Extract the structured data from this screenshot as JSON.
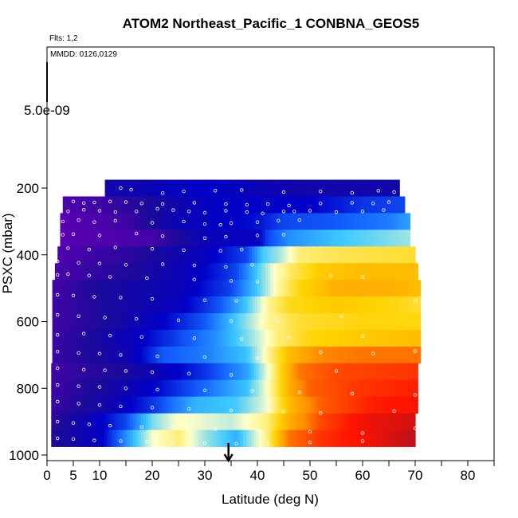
{
  "chart_data": {
    "type": "heatmap",
    "title": "ATOM2 Northeast_Pacific_1 CONBNA_GEOS5",
    "flights_note": "Flts: 1,2",
    "date_note": "MMDD: 0126,0129",
    "xlabel": "Latitude (deg N)",
    "ylabel": "PSXC (mbar)",
    "xlim": [
      0,
      85
    ],
    "ylim": [
      1000,
      0
    ],
    "x_ticks": [
      0,
      5,
      10,
      20,
      30,
      40,
      50,
      60,
      70,
      80
    ],
    "y_ticks": [
      200,
      400,
      600,
      800,
      1000
    ],
    "colorbar_label": "5.0e-09",
    "arrow_latitude": 34.5,
    "colormap": [
      "#5a00b0",
      "#1c0a9a",
      "#0000c8",
      "#1464ff",
      "#3cc8ff",
      "#ffffc8",
      "#ffd200",
      "#ff8c00",
      "#ff1400",
      "#b01020"
    ],
    "rows": [
      {
        "p": 200,
        "x_start": 11.0,
        "x_end": 67.0,
        "values": [
          [
            11,
            0.15
          ],
          [
            20,
            0.18
          ],
          [
            30,
            0.22
          ],
          [
            40,
            0.18
          ],
          [
            50,
            0.15
          ],
          [
            67,
            0.15
          ]
        ]
      },
      {
        "p": 250,
        "x_start": 3.0,
        "x_end": 68.0,
        "values": [
          [
            3,
            0.02
          ],
          [
            10,
            0.05
          ],
          [
            20,
            0.12
          ],
          [
            30,
            0.2
          ],
          [
            40,
            0.22
          ],
          [
            50,
            0.22
          ],
          [
            60,
            0.28
          ],
          [
            68,
            0.3
          ]
        ]
      },
      {
        "p": 300,
        "x_start": 2.5,
        "x_end": 69.0,
        "values": [
          [
            2.5,
            0.0
          ],
          [
            15,
            0.05
          ],
          [
            25,
            0.18
          ],
          [
            35,
            0.22
          ],
          [
            40,
            0.24
          ],
          [
            45,
            0.3
          ],
          [
            55,
            0.32
          ],
          [
            65,
            0.36
          ],
          [
            69,
            0.4
          ]
        ]
      },
      {
        "p": 350,
        "x_start": 2.5,
        "x_end": 69.0,
        "values": [
          [
            2.5,
            0.0
          ],
          [
            20,
            0.04
          ],
          [
            30,
            0.18
          ],
          [
            40,
            0.2
          ],
          [
            42,
            0.3
          ],
          [
            46,
            0.38
          ],
          [
            55,
            0.44
          ],
          [
            69,
            0.5
          ]
        ]
      },
      {
        "p": 400,
        "x_start": 2.0,
        "x_end": 70.0,
        "values": [
          [
            2,
            0.02
          ],
          [
            15,
            0.08
          ],
          [
            30,
            0.2
          ],
          [
            38,
            0.3
          ],
          [
            41,
            0.45
          ],
          [
            44,
            0.5
          ],
          [
            48,
            0.6
          ],
          [
            55,
            0.62
          ],
          [
            70,
            0.64
          ]
        ]
      },
      {
        "p": 450,
        "x_start": 1.5,
        "x_end": 70.5,
        "values": [
          [
            1.5,
            0.03
          ],
          [
            15,
            0.1
          ],
          [
            28,
            0.2
          ],
          [
            36,
            0.3
          ],
          [
            40,
            0.45
          ],
          [
            43,
            0.55
          ],
          [
            47,
            0.62
          ],
          [
            52,
            0.68
          ],
          [
            60,
            0.7
          ],
          [
            70.5,
            0.7
          ]
        ]
      },
      {
        "p": 500,
        "x_start": 1.0,
        "x_end": 71.0,
        "values": [
          [
            1,
            0.04
          ],
          [
            10,
            0.12
          ],
          [
            25,
            0.18
          ],
          [
            35,
            0.3
          ],
          [
            40,
            0.45
          ],
          [
            44,
            0.58
          ],
          [
            48,
            0.66
          ],
          [
            55,
            0.72
          ],
          [
            65,
            0.72
          ],
          [
            71,
            0.7
          ]
        ]
      },
      {
        "p": 550,
        "x_start": 1.0,
        "x_end": 71.0,
        "values": [
          [
            1,
            0.05
          ],
          [
            12,
            0.12
          ],
          [
            25,
            0.2
          ],
          [
            33,
            0.32
          ],
          [
            38,
            0.45
          ],
          [
            42,
            0.58
          ],
          [
            46,
            0.65
          ],
          [
            55,
            0.68
          ],
          [
            65,
            0.66
          ],
          [
            71,
            0.64
          ]
        ]
      },
      {
        "p": 600,
        "x_start": 1.0,
        "x_end": 71.0,
        "values": [
          [
            1,
            0.05
          ],
          [
            12,
            0.12
          ],
          [
            22,
            0.22
          ],
          [
            30,
            0.32
          ],
          [
            36,
            0.45
          ],
          [
            42,
            0.58
          ],
          [
            48,
            0.64
          ],
          [
            60,
            0.66
          ],
          [
            71,
            0.66
          ]
        ]
      },
      {
        "p": 650,
        "x_start": 1.0,
        "x_end": 71.0,
        "values": [
          [
            1,
            0.05
          ],
          [
            15,
            0.18
          ],
          [
            25,
            0.3
          ],
          [
            32,
            0.38
          ],
          [
            38,
            0.48
          ],
          [
            44,
            0.6
          ],
          [
            50,
            0.66
          ],
          [
            60,
            0.68
          ],
          [
            71,
            0.7
          ]
        ]
      },
      {
        "p": 700,
        "x_start": 1.0,
        "x_end": 71.0,
        "values": [
          [
            1,
            0.06
          ],
          [
            15,
            0.16
          ],
          [
            22,
            0.32
          ],
          [
            30,
            0.36
          ],
          [
            38,
            0.44
          ],
          [
            42,
            0.58
          ],
          [
            46,
            0.7
          ],
          [
            52,
            0.78
          ],
          [
            60,
            0.8
          ],
          [
            71,
            0.8
          ]
        ]
      },
      {
        "p": 750,
        "x_start": 0.8,
        "x_end": 70.5,
        "values": [
          [
            0.8,
            0.05
          ],
          [
            15,
            0.12
          ],
          [
            30,
            0.28
          ],
          [
            38,
            0.4
          ],
          [
            42,
            0.55
          ],
          [
            45,
            0.68
          ],
          [
            48,
            0.8
          ],
          [
            55,
            0.84
          ],
          [
            70.5,
            0.86
          ]
        ]
      },
      {
        "p": 800,
        "x_start": 0.8,
        "x_end": 70.5,
        "values": [
          [
            0.8,
            0.05
          ],
          [
            10,
            0.12
          ],
          [
            20,
            0.22
          ],
          [
            30,
            0.34
          ],
          [
            38,
            0.44
          ],
          [
            42,
            0.56
          ],
          [
            46,
            0.72
          ],
          [
            50,
            0.82
          ],
          [
            60,
            0.86
          ],
          [
            70.5,
            0.88
          ]
        ]
      },
      {
        "p": 850,
        "x_start": 0.8,
        "x_end": 70.5,
        "values": [
          [
            0.8,
            0.06
          ],
          [
            10,
            0.14
          ],
          [
            20,
            0.28
          ],
          [
            28,
            0.42
          ],
          [
            36,
            0.45
          ],
          [
            42,
            0.55
          ],
          [
            46,
            0.7
          ],
          [
            52,
            0.82
          ],
          [
            62,
            0.88
          ],
          [
            70.5,
            0.9
          ]
        ]
      },
      {
        "p": 900,
        "x_start": 0.8,
        "x_end": 70.0,
        "values": [
          [
            0.8,
            0.08
          ],
          [
            8,
            0.18
          ],
          [
            15,
            0.3
          ],
          [
            20,
            0.48
          ],
          [
            25,
            0.56
          ],
          [
            35,
            0.52
          ],
          [
            42,
            0.6
          ],
          [
            46,
            0.72
          ],
          [
            52,
            0.84
          ],
          [
            62,
            0.92
          ],
          [
            70,
            0.95
          ]
        ]
      },
      {
        "p": 950,
        "x_start": 0.8,
        "x_end": 70.0,
        "values": [
          [
            0.8,
            0.1
          ],
          [
            10,
            0.2
          ],
          [
            15,
            0.38
          ],
          [
            20,
            0.55
          ],
          [
            25,
            0.6
          ],
          [
            30,
            0.5
          ],
          [
            36,
            0.42
          ],
          [
            42,
            0.6
          ],
          [
            46,
            0.8
          ],
          [
            52,
            0.86
          ],
          [
            60,
            0.9
          ],
          [
            70,
            0.98
          ]
        ]
      }
    ],
    "points": [
      [
        14,
        200
      ],
      [
        16,
        205
      ],
      [
        22,
        215
      ],
      [
        26,
        210
      ],
      [
        32,
        208
      ],
      [
        37,
        206
      ],
      [
        45,
        212
      ],
      [
        52,
        210
      ],
      [
        58,
        214
      ],
      [
        63,
        208
      ],
      [
        66,
        212
      ],
      [
        5,
        240
      ],
      [
        7,
        245
      ],
      [
        9,
        243
      ],
      [
        12,
        240
      ],
      [
        15,
        242
      ],
      [
        18,
        246
      ],
      [
        22,
        248
      ],
      [
        28,
        244
      ],
      [
        34,
        248
      ],
      [
        38,
        250
      ],
      [
        42,
        248
      ],
      [
        46,
        252
      ],
      [
        52,
        246
      ],
      [
        58,
        244
      ],
      [
        62,
        246
      ],
      [
        65,
        242
      ],
      [
        4,
        270
      ],
      [
        7,
        265
      ],
      [
        10,
        268
      ],
      [
        13,
        272
      ],
      [
        17,
        270
      ],
      [
        21,
        262
      ],
      [
        24,
        266
      ],
      [
        27,
        270
      ],
      [
        30,
        274
      ],
      [
        34,
        268
      ],
      [
        38,
        272
      ],
      [
        41,
        276
      ],
      [
        45,
        270
      ],
      [
        47,
        270
      ],
      [
        50,
        268
      ],
      [
        55,
        272
      ],
      [
        60,
        270
      ],
      [
        64,
        266
      ],
      [
        3,
        300
      ],
      [
        6,
        296
      ],
      [
        9,
        302
      ],
      [
        13,
        298
      ],
      [
        20,
        304
      ],
      [
        26,
        300
      ],
      [
        30,
        308
      ],
      [
        33,
        310
      ],
      [
        35,
        305
      ],
      [
        40,
        302
      ],
      [
        44,
        298
      ],
      [
        48,
        296
      ],
      [
        3,
        340
      ],
      [
        5,
        338
      ],
      [
        10,
        342
      ],
      [
        17,
        336
      ],
      [
        22,
        344
      ],
      [
        30,
        350
      ],
      [
        34,
        346
      ],
      [
        40,
        342
      ],
      [
        45,
        340
      ],
      [
        4,
        380
      ],
      [
        8,
        384
      ],
      [
        13,
        378
      ],
      [
        20,
        382
      ],
      [
        26,
        386
      ],
      [
        33,
        388
      ],
      [
        37,
        384
      ],
      [
        2,
        420
      ],
      [
        6,
        424
      ],
      [
        10,
        426
      ],
      [
        15,
        430
      ],
      [
        22,
        428
      ],
      [
        28,
        432
      ],
      [
        34,
        436
      ],
      [
        39,
        430
      ],
      [
        2,
        460
      ],
      [
        4,
        458
      ],
      [
        8,
        462
      ],
      [
        12,
        466
      ],
      [
        19,
        470
      ],
      [
        28,
        474
      ],
      [
        35,
        478
      ],
      [
        40,
        480
      ],
      [
        54,
        462
      ],
      [
        60,
        466
      ],
      [
        2,
        520
      ],
      [
        5,
        522
      ],
      [
        9,
        526
      ],
      [
        14,
        528
      ],
      [
        20,
        532
      ],
      [
        30,
        536
      ],
      [
        36,
        538
      ],
      [
        41,
        530
      ],
      [
        70,
        538
      ],
      [
        2,
        580
      ],
      [
        6,
        584
      ],
      [
        11,
        588
      ],
      [
        17,
        592
      ],
      [
        25,
        596
      ],
      [
        35,
        598
      ],
      [
        44,
        600
      ],
      [
        56,
        584
      ],
      [
        2,
        640
      ],
      [
        7,
        636
      ],
      [
        12,
        642
      ],
      [
        18,
        646
      ],
      [
        28,
        650
      ],
      [
        37,
        652
      ],
      [
        46,
        648
      ],
      [
        60,
        644
      ],
      [
        2,
        690
      ],
      [
        6,
        694
      ],
      [
        10,
        696
      ],
      [
        14,
        700
      ],
      [
        21,
        704
      ],
      [
        30,
        706
      ],
      [
        40,
        710
      ],
      [
        52,
        692
      ],
      [
        62,
        696
      ],
      [
        70,
        688
      ],
      [
        2,
        740
      ],
      [
        7,
        744
      ],
      [
        11,
        746
      ],
      [
        15,
        748
      ],
      [
        20,
        752
      ],
      [
        27,
        756
      ],
      [
        35,
        760
      ],
      [
        42,
        754
      ],
      [
        55,
        748
      ],
      [
        2,
        790
      ],
      [
        6,
        794
      ],
      [
        10,
        796
      ],
      [
        15,
        800
      ],
      [
        21,
        804
      ],
      [
        30,
        806
      ],
      [
        39,
        808
      ],
      [
        48,
        812
      ],
      [
        58,
        816
      ],
      [
        70,
        820
      ],
      [
        2,
        840
      ],
      [
        6,
        846
      ],
      [
        10,
        850
      ],
      [
        14,
        854
      ],
      [
        20,
        858
      ],
      [
        27,
        862
      ],
      [
        35,
        866
      ],
      [
        45,
        870
      ],
      [
        52,
        874
      ],
      [
        66,
        868
      ],
      [
        2,
        900
      ],
      [
        5,
        904
      ],
      [
        8,
        908
      ],
      [
        12,
        912
      ],
      [
        18,
        916
      ],
      [
        24,
        918
      ],
      [
        32,
        922
      ],
      [
        40,
        926
      ],
      [
        50,
        930
      ],
      [
        60,
        934
      ],
      [
        70,
        920
      ],
      [
        2,
        950
      ],
      [
        5,
        952
      ],
      [
        9,
        956
      ],
      [
        14,
        958
      ],
      [
        19,
        960
      ],
      [
        24,
        962
      ],
      [
        30,
        964
      ],
      [
        36,
        966
      ],
      [
        42,
        966
      ],
      [
        50,
        962
      ],
      [
        60,
        958
      ]
    ]
  }
}
